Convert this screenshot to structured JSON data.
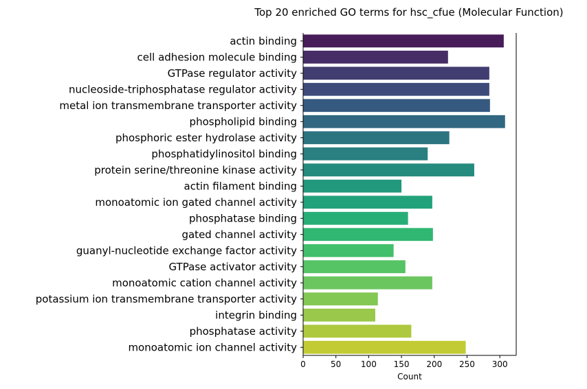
{
  "chart_data": {
    "type": "bar",
    "orientation": "horizontal",
    "title": "Top 20 enriched GO terms for hsc_cfue (Molecular Function)",
    "xlabel": "Count",
    "ylabel": "",
    "xlim": [
      0,
      325
    ],
    "xticks": [
      0,
      50,
      100,
      150,
      200,
      250,
      300
    ],
    "grid": false,
    "colormap": "viridis",
    "categories": [
      "actin binding",
      "cell adhesion molecule binding",
      "GTPase regulator activity",
      "nucleoside-triphosphatase regulator activity",
      "metal ion transmembrane transporter activity",
      "phospholipid binding",
      "phosphoric ester hydrolase activity",
      "phosphatidylinositol binding",
      "protein serine/threonine kinase activity",
      "actin filament binding",
      "monoatomic ion gated channel activity",
      "phosphatase binding",
      "gated channel activity",
      "guanyl-nucleotide exchange factor activity",
      "GTPase activator activity",
      "monoatomic cation channel activity",
      "potassium ion transmembrane transporter activity",
      "integrin binding",
      "phosphatase activity",
      "monoatomic ion channel activity"
    ],
    "values": [
      306,
      221,
      284,
      284,
      285,
      308,
      223,
      190,
      261,
      150,
      197,
      160,
      198,
      138,
      156,
      197,
      114,
      110,
      165,
      248
    ],
    "colors": [
      "#471C59",
      "#472D66",
      "#423D71",
      "#3D4B7B",
      "#36597F",
      "#316780",
      "#2D7481",
      "#2A7F80",
      "#268B7F",
      "#22987C",
      "#22A27A",
      "#27AE77",
      "#30B772",
      "#42BF6B",
      "#56C365",
      "#6CC65F",
      "#83C755",
      "#99C84A",
      "#AEC93E",
      "#C2CB33"
    ]
  }
}
